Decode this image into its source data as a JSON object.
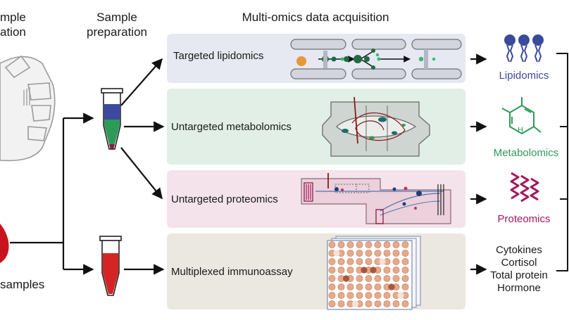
{
  "headers": {
    "sample_line1": "mple",
    "sample_line2": "ation",
    "prep_line1": "Sample",
    "prep_line2": "preparation",
    "acquisition": "Multi-omics data acquisition"
  },
  "left_label": "samples",
  "rows": [
    {
      "label": "Targeted lipidomics",
      "bg": "#e6e8f2"
    },
    {
      "label": "Untargeted metabolomics",
      "bg": "#e1efe6"
    },
    {
      "label": "Untargeted proteomics",
      "bg": "#f4e3ea"
    },
    {
      "label": "Multiplexed immunoassay",
      "bg": "#ebe7e1"
    }
  ],
  "outputs": {
    "lipidomics": {
      "label": "Lipidomics",
      "color": "#3b4a9a"
    },
    "metabolomics": {
      "label": "Metabolomics",
      "color": "#2e9a58"
    },
    "proteomics": {
      "label": "Proteomics",
      "color": "#a3195b"
    },
    "immunoassay_items": [
      "Cytokines",
      "Cortisol",
      "Total protein",
      "Hormone"
    ]
  },
  "colors": {
    "tube_blue": "#3b4aa0",
    "tube_green": "#2e9a58",
    "tube_red": "#d42525",
    "blood": "#c8141e",
    "orange_dot": "#e8963a",
    "dark_green": "#1f6b43"
  }
}
